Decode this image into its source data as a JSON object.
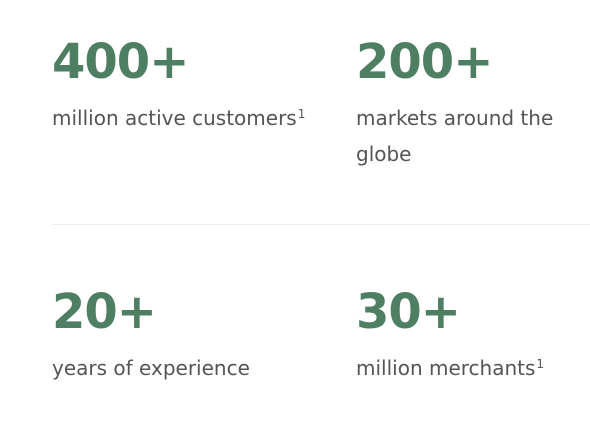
{
  "stats": [
    {
      "value": "400+",
      "label": "million active customers",
      "footnote": "1"
    },
    {
      "value": "200+",
      "label": "markets around the globe",
      "footnote": ""
    },
    {
      "value": "20+",
      "label": "years of experience",
      "footnote": ""
    },
    {
      "value": "30+",
      "label": "million merchants",
      "footnote": "1"
    }
  ],
  "colors": {
    "accent": "#4f7f62",
    "text": "#555555",
    "divider": "#ececec"
  }
}
